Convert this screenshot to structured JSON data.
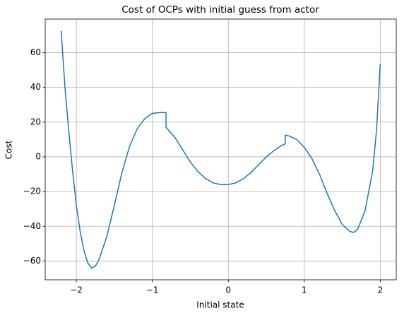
{
  "chart_data": {
    "type": "line",
    "title": "Cost of OCPs with initial guess from actor",
    "xlabel": "Initial state",
    "ylabel": "Cost",
    "x": [
      -2.2,
      -2.15,
      -2.1,
      -2.05,
      -2.0,
      -1.95,
      -1.9,
      -1.85,
      -1.8,
      -1.75,
      -1.7,
      -1.6,
      -1.5,
      -1.4,
      -1.3,
      -1.2,
      -1.1,
      -1.0,
      -0.9,
      -0.82,
      -0.82,
      -0.7,
      -0.6,
      -0.5,
      -0.4,
      -0.3,
      -0.2,
      -0.1,
      0,
      0.1,
      0.2,
      0.3,
      0.4,
      0.5,
      0.6,
      0.7,
      0.75,
      0.75,
      0.8,
      0.9,
      1.0,
      1.1,
      1.2,
      1.3,
      1.4,
      1.5,
      1.6,
      1.65,
      1.7,
      1.8,
      1.9,
      1.95,
      2.0
    ],
    "series": [
      {
        "color": "#1f77b4",
        "values": [
          72.5,
          40,
          15,
          -8,
          -28,
          -43,
          -54,
          -61,
          -64,
          -63,
          -59,
          -46,
          -28,
          -9,
          6,
          16,
          22,
          25,
          25.5,
          25.5,
          17,
          11,
          4,
          -3,
          -8.5,
          -12.5,
          -15,
          -16,
          -16,
          -15,
          -12.5,
          -9,
          -4.5,
          0,
          3.5,
          6.5,
          7.5,
          12.5,
          12,
          10,
          5.5,
          -1,
          -10,
          -21,
          -31,
          -39,
          -43,
          -43.5,
          -42,
          -31,
          -8,
          15,
          53.5
        ]
      }
    ],
    "xlim": [
      -2.41,
      2.21
    ],
    "ylim": [
      -70.8,
      79.3
    ],
    "xticks": [
      {
        "value": -2,
        "label": "−2"
      },
      {
        "value": -1,
        "label": "−1"
      },
      0,
      1,
      2
    ],
    "yticks": [
      {
        "value": -60,
        "label": "−60"
      },
      {
        "value": -40,
        "label": "−40"
      },
      {
        "value": -20,
        "label": "−20"
      },
      0,
      20,
      40,
      60
    ],
    "grid": true
  }
}
